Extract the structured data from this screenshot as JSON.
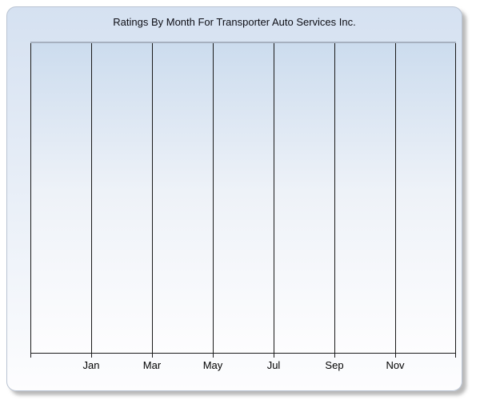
{
  "panel": {
    "type": "chart-widget"
  },
  "chart_data": {
    "type": "line",
    "title": "Ratings By Month For Transporter Auto Services Inc.",
    "xlabel": "",
    "ylabel": "",
    "x_tick_labels": [
      "Jan",
      "Mar",
      "May",
      "Jul",
      "Sep",
      "Nov"
    ],
    "x_gridline_divisions": 7,
    "y_tick_labels": [],
    "series": [],
    "grid": "vertical-only",
    "legend": "none",
    "notes": "Plot area is empty; no data series, y-axis labels or legend are rendered. Vertical gridlines divide the plot into 7 equal columns; month labels sit under the 6 interior gridlines."
  },
  "colors": {
    "page_background": "#ffffff",
    "panel_gradient_top": "#d5e1f1",
    "panel_gradient_bottom": "#fdfdfe",
    "panel_border": "#b9c3d2",
    "plot_gradient_top": "#ccdcee",
    "plot_gradient_mid": "#eef2f8",
    "plot_gradient_bottom": "#fdfdfe",
    "plot_top_border": "#a6b0bf",
    "gridline": "#1a1a1a",
    "axis_line": "#1a1a1a",
    "label_text": "#000000",
    "title_text": "#0c0c14"
  }
}
